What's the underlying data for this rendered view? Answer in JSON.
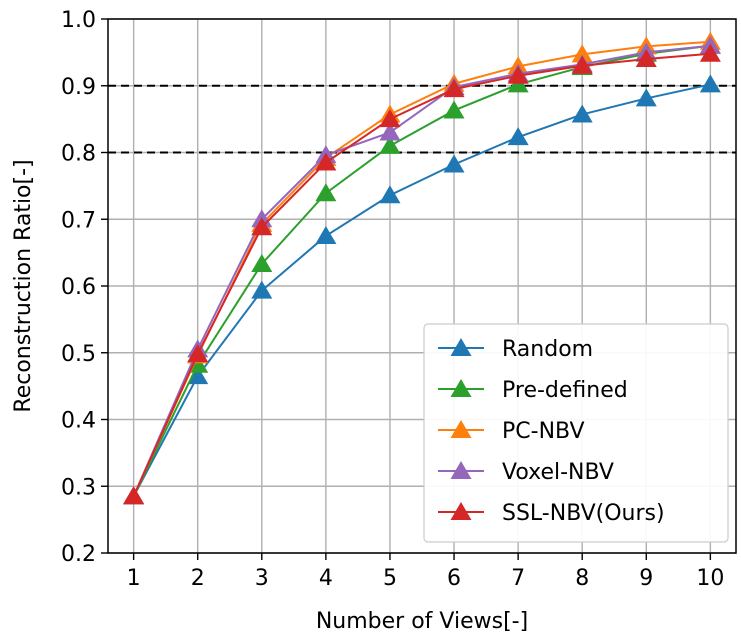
{
  "chart_data": {
    "type": "line",
    "xlabel": "Number of Views[-]",
    "ylabel": "Reconstruction Ratio[-]",
    "xlim": [
      0.6,
      10.4
    ],
    "ylim": [
      0.2,
      1.0
    ],
    "x": [
      1,
      2,
      3,
      4,
      5,
      6,
      7,
      8,
      9,
      10
    ],
    "x_ticks": [
      "1",
      "2",
      "3",
      "4",
      "5",
      "6",
      "7",
      "8",
      "9",
      "10"
    ],
    "y_ticks": [
      0.2,
      0.3,
      0.4,
      0.5,
      0.6,
      0.7,
      0.8,
      0.9,
      1.0
    ],
    "y_tick_labels": [
      "0.2",
      "0.3",
      "0.4",
      "0.5",
      "0.6",
      "0.7",
      "0.8",
      "0.9",
      "1.0"
    ],
    "grid": true,
    "reference_lines": [
      0.8,
      0.9
    ],
    "legend_position": "bottom-right",
    "marker": "triangle-up",
    "series": [
      {
        "name": "Random",
        "color": "#1f77b4",
        "values": [
          0.285,
          0.465,
          0.593,
          0.675,
          0.736,
          0.782,
          0.823,
          0.857,
          0.881,
          0.902
        ]
      },
      {
        "name": "Pre-defined",
        "color": "#2ca02c",
        "values": [
          0.285,
          0.482,
          0.633,
          0.739,
          0.81,
          0.863,
          0.902,
          0.928,
          0.948,
          0.96
        ]
      },
      {
        "name": "PC-NBV",
        "color": "#ff7f0e",
        "values": [
          0.285,
          0.496,
          0.693,
          0.792,
          0.857,
          0.903,
          0.929,
          0.947,
          0.959,
          0.966
        ]
      },
      {
        "name": "Voxel-NBV",
        "color": "#9467bd",
        "values": [
          0.285,
          0.505,
          0.7,
          0.796,
          0.83,
          0.898,
          0.918,
          0.932,
          0.95,
          0.96
        ]
      },
      {
        "name": "SSL-NBV(Ours)",
        "color": "#d62728",
        "values": [
          0.285,
          0.498,
          0.688,
          0.785,
          0.85,
          0.895,
          0.915,
          0.93,
          0.94,
          0.948
        ]
      }
    ]
  }
}
